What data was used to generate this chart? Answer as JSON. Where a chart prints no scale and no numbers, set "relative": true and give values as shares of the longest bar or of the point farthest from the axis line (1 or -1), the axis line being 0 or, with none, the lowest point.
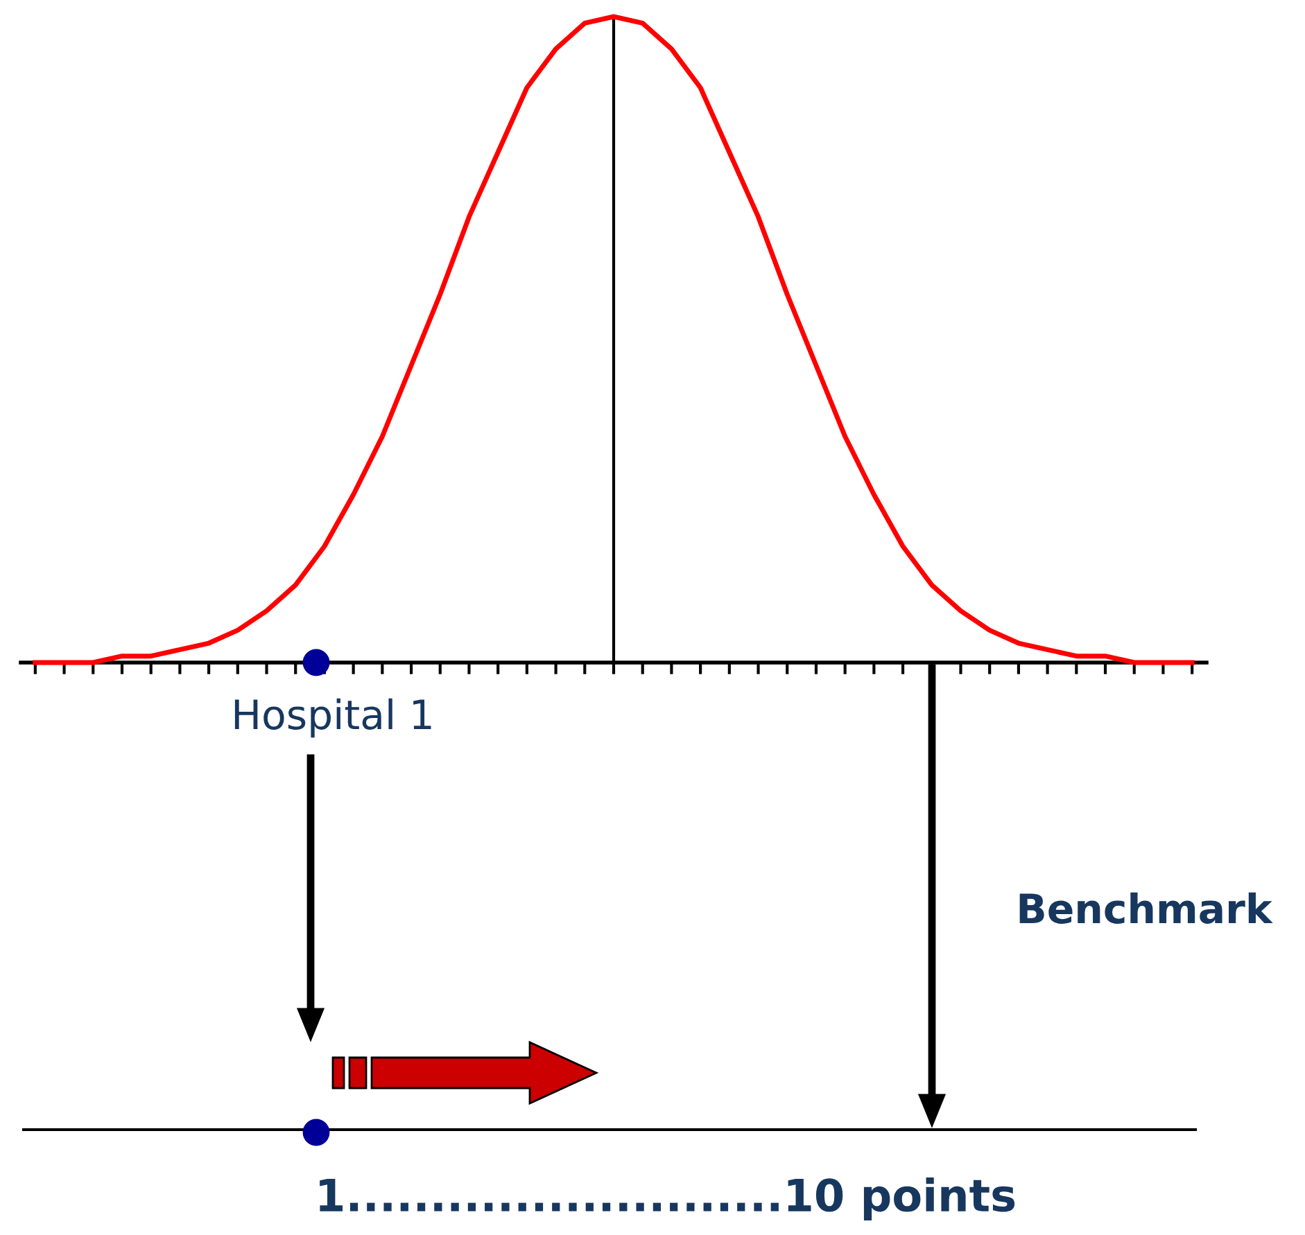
{
  "chart_data": {
    "type": "line",
    "relative": true,
    "categories": [
      null,
      null,
      null,
      null,
      null,
      null,
      null,
      null,
      null,
      null,
      null,
      null,
      null,
      null,
      null,
      null,
      null,
      null,
      null,
      null,
      null,
      null,
      null,
      null,
      null,
      null,
      null,
      null,
      null,
      null,
      null,
      null,
      null,
      null,
      null,
      null,
      null,
      null,
      null,
      null,
      null
    ],
    "series": [
      {
        "color": "#ff0000",
        "values": [
          0.0,
          0.0,
          0.0,
          0.01,
          0.01,
          0.02,
          0.03,
          0.05,
          0.08,
          0.12,
          0.18,
          0.26,
          0.35,
          0.46,
          0.57,
          0.69,
          0.79,
          0.89,
          0.95,
          0.99,
          1.0,
          0.99,
          0.95,
          0.89,
          0.79,
          0.69,
          0.57,
          0.46,
          0.35,
          0.26,
          0.18,
          0.12,
          0.08,
          0.05,
          0.03,
          0.02,
          0.01,
          0.01,
          0.0,
          0.0,
          0.0
        ]
      }
    ],
    "annotations": [
      "Hospital 1",
      "Benchmark",
      "1..........................10 points"
    ]
  }
}
